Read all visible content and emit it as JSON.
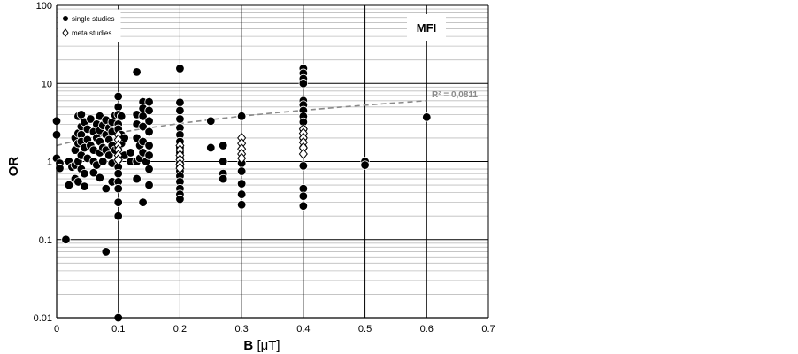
{
  "chart_data": {
    "type": "scatter",
    "title": "",
    "panel_label": "MFI",
    "xlabel_prefix": "B",
    "xlabel_unit": "[μT]",
    "ylabel": "OR",
    "x_scale": "linear",
    "y_scale": "log",
    "xlim": [
      0,
      0.7
    ],
    "ylim": [
      0.01,
      100
    ],
    "x_ticks": [
      "0",
      "0.1",
      "0.2",
      "0.3",
      "0.4",
      "0.5",
      "0.6",
      "0.7"
    ],
    "y_ticks": [
      "0.01",
      "0.1",
      "1",
      "10",
      "100"
    ],
    "grid": "major and minor horizontal gridlines, major vertical gridlines",
    "legend_position": "top-left",
    "annotation": "R² = 0,0811",
    "trendline": {
      "style": "dashed",
      "x": [
        0,
        0.6
      ],
      "y": [
        1.6,
        6.0
      ]
    },
    "series": [
      {
        "name": "single studies",
        "marker": "filled circle",
        "color": "#000000",
        "points": [
          [
            0.0,
            3.3
          ],
          [
            0.0,
            2.2
          ],
          [
            0.0,
            1.1
          ],
          [
            0.005,
            0.95
          ],
          [
            0.005,
            0.82
          ],
          [
            0.015,
            0.1
          ],
          [
            0.02,
            0.5
          ],
          [
            0.02,
            1.0
          ],
          [
            0.025,
            0.85
          ],
          [
            0.03,
            2.0
          ],
          [
            0.03,
            1.4
          ],
          [
            0.03,
            0.9
          ],
          [
            0.03,
            0.6
          ],
          [
            0.035,
            3.8
          ],
          [
            0.035,
            2.3
          ],
          [
            0.035,
            1.7
          ],
          [
            0.035,
            1.0
          ],
          [
            0.035,
            0.55
          ],
          [
            0.04,
            4.0
          ],
          [
            0.04,
            2.8
          ],
          [
            0.04,
            2.2
          ],
          [
            0.04,
            1.8
          ],
          [
            0.04,
            1.2
          ],
          [
            0.04,
            0.8
          ],
          [
            0.045,
            3.2
          ],
          [
            0.045,
            1.5
          ],
          [
            0.045,
            0.7
          ],
          [
            0.045,
            0.48
          ],
          [
            0.05,
            2.6
          ],
          [
            0.05,
            1.9
          ],
          [
            0.05,
            1.1
          ],
          [
            0.055,
            3.5
          ],
          [
            0.055,
            1.6
          ],
          [
            0.06,
            2.4
          ],
          [
            0.06,
            1.4
          ],
          [
            0.06,
            1.0
          ],
          [
            0.06,
            0.72
          ],
          [
            0.065,
            3.0
          ],
          [
            0.065,
            2.0
          ],
          [
            0.065,
            0.9
          ],
          [
            0.07,
            3.8
          ],
          [
            0.07,
            2.5
          ],
          [
            0.07,
            1.8
          ],
          [
            0.07,
            1.3
          ],
          [
            0.07,
            0.62
          ],
          [
            0.075,
            2.9
          ],
          [
            0.075,
            1.5
          ],
          [
            0.075,
            1.0
          ],
          [
            0.08,
            3.4
          ],
          [
            0.08,
            2.2
          ],
          [
            0.08,
            1.4
          ],
          [
            0.08,
            0.45
          ],
          [
            0.08,
            0.07
          ],
          [
            0.085,
            2.7
          ],
          [
            0.085,
            1.9
          ],
          [
            0.085,
            1.2
          ],
          [
            0.09,
            3.2
          ],
          [
            0.09,
            2.4
          ],
          [
            0.09,
            1.6
          ],
          [
            0.09,
            0.95
          ],
          [
            0.09,
            0.55
          ],
          [
            0.095,
            3.9
          ],
          [
            0.095,
            1.4
          ],
          [
            0.1,
            6.8
          ],
          [
            0.1,
            5.0
          ],
          [
            0.1,
            4.0
          ],
          [
            0.1,
            3.0
          ],
          [
            0.1,
            2.6
          ],
          [
            0.1,
            1.5
          ],
          [
            0.1,
            1.05
          ],
          [
            0.1,
            0.85
          ],
          [
            0.1,
            0.7
          ],
          [
            0.1,
            0.55
          ],
          [
            0.1,
            0.45
          ],
          [
            0.1,
            0.3
          ],
          [
            0.1,
            0.2
          ],
          [
            0.1,
            0.01
          ],
          [
            0.105,
            3.8
          ],
          [
            0.105,
            2.2
          ],
          [
            0.105,
            1.7
          ],
          [
            0.11,
            2.0
          ],
          [
            0.11,
            1.2
          ],
          [
            0.12,
            1.3
          ],
          [
            0.12,
            1.0
          ],
          [
            0.13,
            14.0
          ],
          [
            0.13,
            4.0
          ],
          [
            0.13,
            3.0
          ],
          [
            0.13,
            2.0
          ],
          [
            0.13,
            1.0
          ],
          [
            0.13,
            0.6
          ],
          [
            0.135,
            1.6
          ],
          [
            0.135,
            1.1
          ],
          [
            0.14,
            5.8
          ],
          [
            0.14,
            4.8
          ],
          [
            0.14,
            3.8
          ],
          [
            0.14,
            2.8
          ],
          [
            0.14,
            1.8
          ],
          [
            0.14,
            1.3
          ],
          [
            0.14,
            0.3
          ],
          [
            0.145,
            1.0
          ],
          [
            0.15,
            5.8
          ],
          [
            0.15,
            4.5
          ],
          [
            0.15,
            3.3
          ],
          [
            0.15,
            2.4
          ],
          [
            0.15,
            1.6
          ],
          [
            0.15,
            1.2
          ],
          [
            0.15,
            0.8
          ],
          [
            0.15,
            0.5
          ],
          [
            0.2,
            15.5
          ],
          [
            0.2,
            5.7
          ],
          [
            0.2,
            4.5
          ],
          [
            0.2,
            3.5
          ],
          [
            0.2,
            2.7
          ],
          [
            0.2,
            2.2
          ],
          [
            0.2,
            1.8
          ],
          [
            0.2,
            1.5
          ],
          [
            0.2,
            1.3
          ],
          [
            0.2,
            1.1
          ],
          [
            0.2,
            0.95
          ],
          [
            0.2,
            0.85
          ],
          [
            0.2,
            0.75
          ],
          [
            0.2,
            0.65
          ],
          [
            0.2,
            0.55
          ],
          [
            0.2,
            0.45
          ],
          [
            0.2,
            0.38
          ],
          [
            0.2,
            0.33
          ],
          [
            0.25,
            3.3
          ],
          [
            0.25,
            1.5
          ],
          [
            0.27,
            1.6
          ],
          [
            0.27,
            1.0
          ],
          [
            0.27,
            0.7
          ],
          [
            0.27,
            0.6
          ],
          [
            0.3,
            3.8
          ],
          [
            0.3,
            0.95
          ],
          [
            0.3,
            0.75
          ],
          [
            0.3,
            0.52
          ],
          [
            0.3,
            0.38
          ],
          [
            0.3,
            0.28
          ],
          [
            0.4,
            15.5
          ],
          [
            0.4,
            13.5
          ],
          [
            0.4,
            11.5
          ],
          [
            0.4,
            10.0
          ],
          [
            0.4,
            6.0
          ],
          [
            0.4,
            5.3
          ],
          [
            0.4,
            4.5
          ],
          [
            0.4,
            3.8
          ],
          [
            0.4,
            3.2
          ],
          [
            0.4,
            2.6
          ],
          [
            0.4,
            2.0
          ],
          [
            0.4,
            1.5
          ],
          [
            0.4,
            0.88
          ],
          [
            0.4,
            0.45
          ],
          [
            0.4,
            0.36
          ],
          [
            0.4,
            0.27
          ],
          [
            0.5,
            1.0
          ],
          [
            0.5,
            0.9
          ],
          [
            0.6,
            3.7
          ]
        ]
      },
      {
        "name": "meta studies",
        "marker": "open diamond",
        "color": "#000000",
        "points": [
          [
            0.1,
            2.2
          ],
          [
            0.1,
            1.9
          ],
          [
            0.1,
            1.6
          ],
          [
            0.1,
            1.4
          ],
          [
            0.1,
            1.2
          ],
          [
            0.1,
            1.05
          ],
          [
            0.2,
            1.6
          ],
          [
            0.2,
            1.4
          ],
          [
            0.2,
            1.2
          ],
          [
            0.2,
            1.05
          ],
          [
            0.2,
            0.92
          ],
          [
            0.2,
            0.82
          ],
          [
            0.3,
            2.0
          ],
          [
            0.3,
            1.7
          ],
          [
            0.3,
            1.45
          ],
          [
            0.3,
            1.25
          ],
          [
            0.3,
            1.1
          ],
          [
            0.4,
            2.6
          ],
          [
            0.4,
            2.3
          ],
          [
            0.4,
            2.0
          ],
          [
            0.4,
            1.75
          ],
          [
            0.4,
            1.5
          ],
          [
            0.4,
            1.25
          ]
        ]
      }
    ]
  }
}
